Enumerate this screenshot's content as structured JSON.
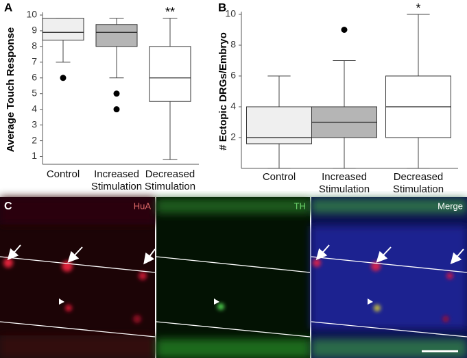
{
  "chart_data": [
    {
      "type": "box",
      "panel_label": "A",
      "ylabel": "Average Touch Response",
      "categories": [
        "Control",
        "Increased Stimulation",
        "Decreased Stimulation"
      ],
      "colors": [
        "#efefef",
        "#b5b5b5",
        "#ffffff"
      ],
      "significance": [
        null,
        null,
        "**"
      ],
      "ylim": [
        0.5,
        10
      ],
      "yticks": [
        1,
        2,
        3,
        4,
        5,
        6,
        7,
        8,
        9,
        10
      ],
      "boxes": [
        {
          "whislo": 7,
          "q1": 8.4,
          "med": 8.9,
          "q3": 9.8,
          "whishi": 9.8,
          "fliers": [
            6
          ]
        },
        {
          "whislo": 6,
          "q1": 8,
          "med": 8.9,
          "q3": 9.4,
          "whishi": 9.8,
          "fliers": [
            5,
            4
          ]
        },
        {
          "whislo": 0.8,
          "q1": 4.5,
          "med": 6,
          "q3": 8,
          "whishi": 9.8,
          "fliers": []
        }
      ]
    },
    {
      "type": "box",
      "panel_label": "B",
      "ylabel": "# Ectopic DRGs/Embryo",
      "categories": [
        "Control",
        "Increased Stimulation",
        "Decreased Stimulation"
      ],
      "colors": [
        "#efefef",
        "#b5b5b5",
        "#ffffff"
      ],
      "significance": [
        null,
        null,
        "*"
      ],
      "ylim": [
        0,
        10
      ],
      "yticks": [
        2,
        4,
        6,
        8,
        10
      ],
      "boxes": [
        {
          "whislo": 0,
          "q1": 1.6,
          "med": 2,
          "q3": 4,
          "whishi": 6,
          "fliers": []
        },
        {
          "whislo": 0,
          "q1": 2,
          "med": 3,
          "q3": 4,
          "whishi": 7,
          "fliers": [
            9
          ]
        },
        {
          "whislo": 0,
          "q1": 2,
          "med": 4,
          "q3": 6,
          "whishi": 10,
          "fliers": []
        }
      ]
    }
  ],
  "panel_c": {
    "label": "C",
    "channels": [
      "HuA",
      "TH",
      "Merge"
    ]
  }
}
